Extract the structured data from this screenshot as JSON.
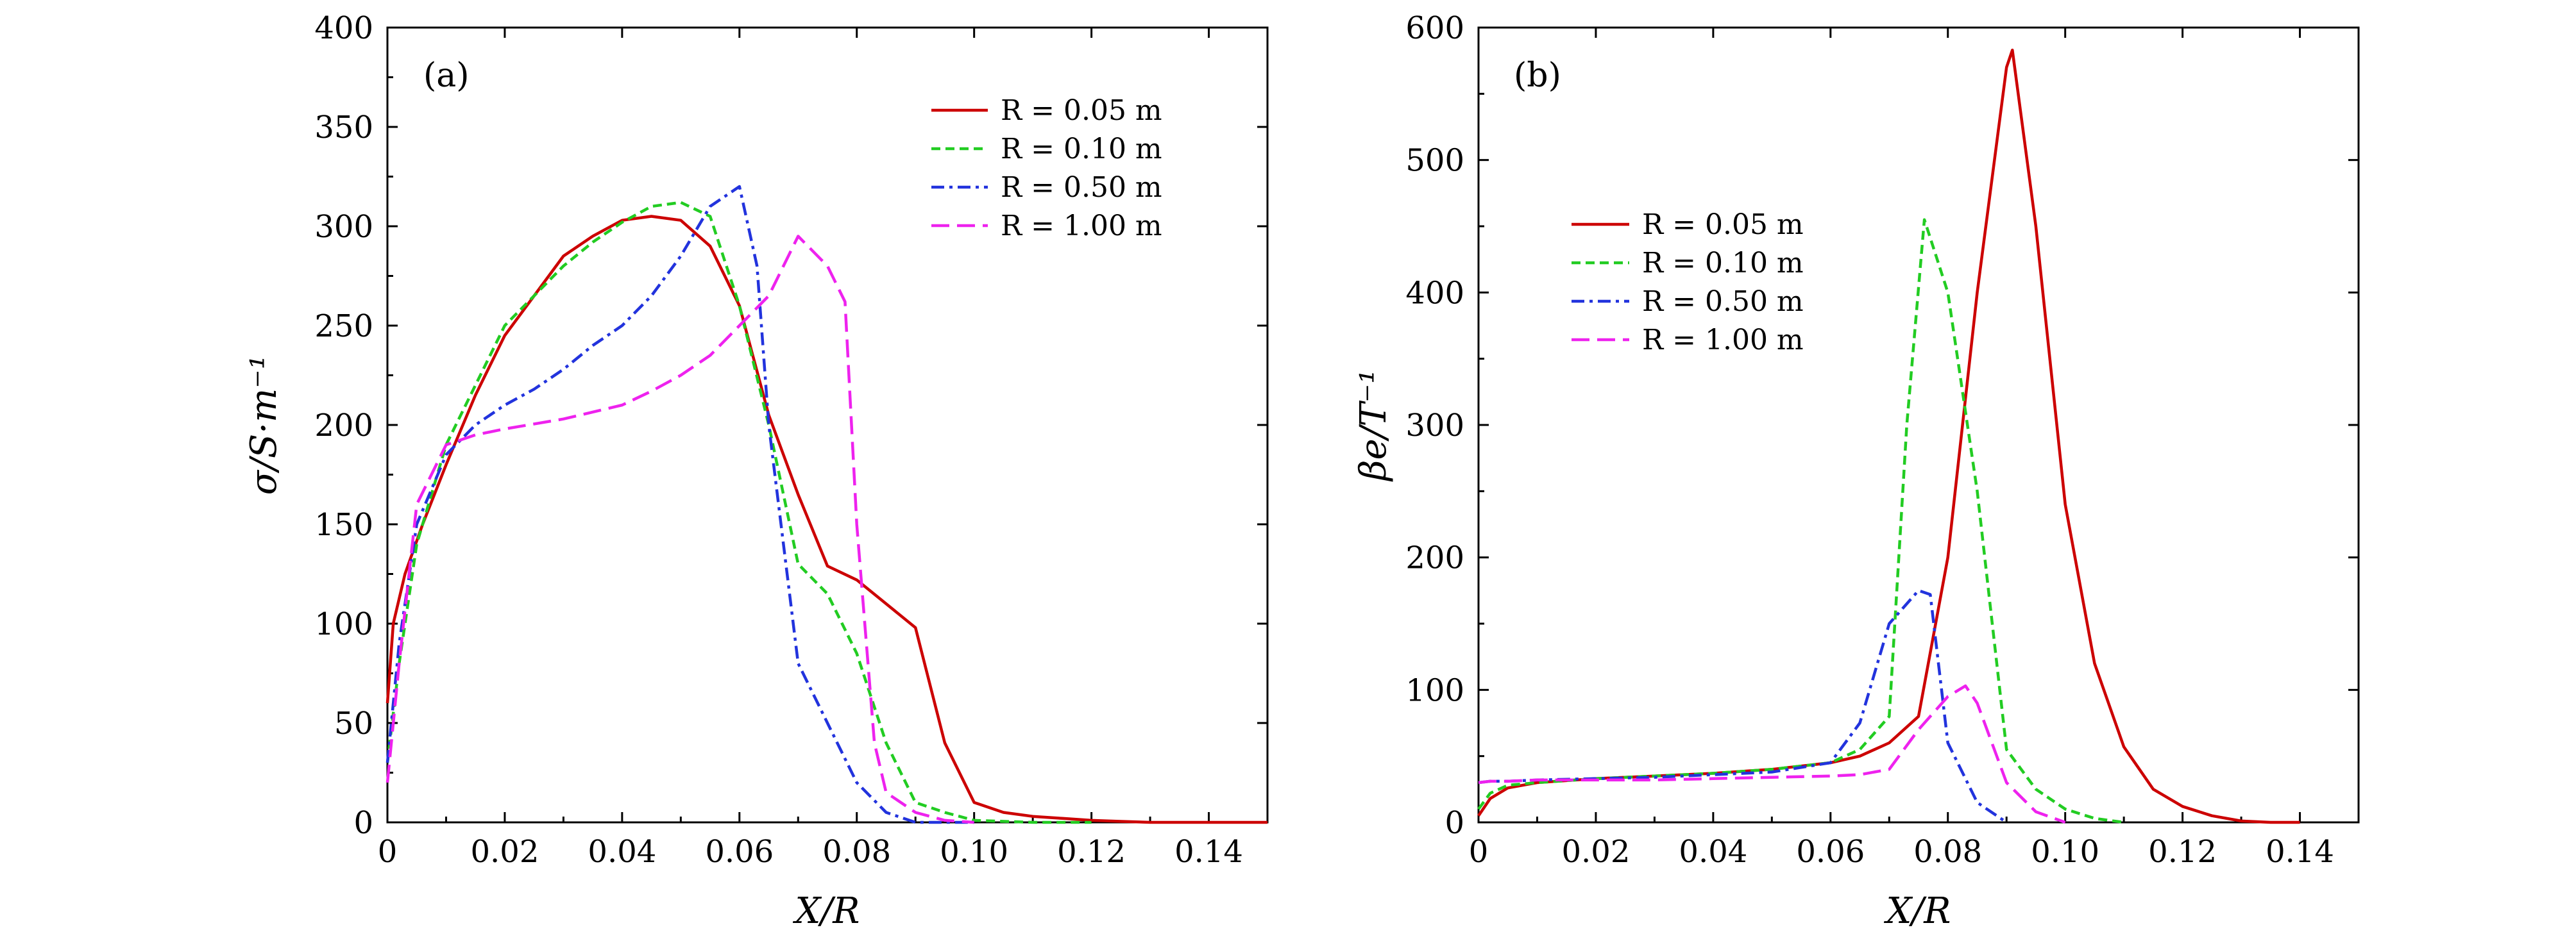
{
  "chart_data": [
    {
      "type": "line",
      "panel_label": "(a)",
      "xlabel": "X/R",
      "ylabel": "σ/S·m⁻¹",
      "xlim": [
        0,
        0.15
      ],
      "ylim": [
        0,
        400
      ],
      "xticks": [
        0,
        0.02,
        0.04,
        0.06,
        0.08,
        0.1,
        0.12,
        0.14
      ],
      "xtick_labels": [
        "0",
        "0.02",
        "0.04",
        "0.06",
        "0.08",
        "0.10",
        "0.12",
        "0.14"
      ],
      "yticks": [
        0,
        50,
        100,
        150,
        200,
        250,
        300,
        350,
        400
      ],
      "ytick_labels": [
        "0",
        "50",
        "100",
        "150",
        "200",
        "250",
        "300",
        "350",
        "400"
      ],
      "legend_position": "top-right",
      "series": [
        {
          "name": "R = 0.05 m",
          "color": "#cc0000",
          "dash": "solid",
          "x": [
            0,
            0.001,
            0.003,
            0.006,
            0.01,
            0.015,
            0.02,
            0.025,
            0.03,
            0.035,
            0.04,
            0.045,
            0.05,
            0.055,
            0.06,
            0.065,
            0.07,
            0.075,
            0.08,
            0.085,
            0.09,
            0.095,
            0.1,
            0.105,
            0.11,
            0.115,
            0.12,
            0.125,
            0.13,
            0.14,
            0.15
          ],
          "y": [
            60,
            100,
            125,
            150,
            180,
            215,
            245,
            265,
            285,
            295,
            303,
            305,
            303,
            290,
            260,
            205,
            165,
            129,
            122,
            110,
            98,
            40,
            10,
            5,
            3,
            2,
            1,
            0.5,
            0,
            0,
            0
          ]
        },
        {
          "name": "R = 0.10 m",
          "color": "#22cc22",
          "dash": "short",
          "x": [
            0,
            0.002,
            0.005,
            0.01,
            0.015,
            0.02,
            0.025,
            0.03,
            0.035,
            0.04,
            0.045,
            0.05,
            0.055,
            0.06,
            0.065,
            0.07,
            0.075,
            0.08,
            0.085,
            0.09,
            0.095,
            0.1,
            0.11,
            0.12
          ],
          "y": [
            30,
            80,
            140,
            190,
            220,
            250,
            265,
            280,
            292,
            302,
            310,
            312,
            305,
            260,
            200,
            130,
            115,
            85,
            40,
            10,
            5,
            1,
            0,
            0
          ]
        },
        {
          "name": "R = 0.50 m",
          "color": "#2233dd",
          "dash": "dashdot",
          "x": [
            0,
            0.002,
            0.005,
            0.01,
            0.015,
            0.02,
            0.025,
            0.03,
            0.035,
            0.04,
            0.045,
            0.05,
            0.055,
            0.06,
            0.063,
            0.065,
            0.07,
            0.075,
            0.08,
            0.085,
            0.09,
            0.1
          ],
          "y": [
            30,
            90,
            150,
            185,
            200,
            210,
            218,
            228,
            240,
            250,
            265,
            285,
            310,
            320,
            280,
            200,
            80,
            50,
            20,
            5,
            0,
            0
          ]
        },
        {
          "name": "R = 1.00 m",
          "color": "#ee22ee",
          "dash": "dashed",
          "x": [
            0,
            0.002,
            0.005,
            0.01,
            0.015,
            0.02,
            0.03,
            0.04,
            0.045,
            0.05,
            0.055,
            0.06,
            0.065,
            0.07,
            0.075,
            0.078,
            0.08,
            0.083,
            0.085,
            0.09,
            0.095,
            0.1
          ],
          "y": [
            20,
            80,
            160,
            190,
            195,
            198,
            203,
            210,
            217,
            225,
            235,
            250,
            265,
            295,
            280,
            262,
            150,
            40,
            15,
            5,
            1,
            0
          ]
        }
      ]
    },
    {
      "type": "line",
      "panel_label": "(b)",
      "xlabel": "X/R",
      "ylabel": "βe/T⁻¹",
      "xlim": [
        0,
        0.15
      ],
      "ylim": [
        0,
        600
      ],
      "xticks": [
        0,
        0.02,
        0.04,
        0.06,
        0.08,
        0.1,
        0.12,
        0.14
      ],
      "xtick_labels": [
        "0",
        "0.02",
        "0.04",
        "0.06",
        "0.08",
        "0.10",
        "0.12",
        "0.14"
      ],
      "yticks": [
        0,
        100,
        200,
        300,
        400,
        500,
        600
      ],
      "ytick_labels": [
        "0",
        "100",
        "200",
        "300",
        "400",
        "500",
        "600"
      ],
      "legend_position": "upper-left",
      "series": [
        {
          "name": "R = 0.05 m",
          "color": "#cc0000",
          "dash": "solid",
          "x": [
            0,
            0.002,
            0.005,
            0.01,
            0.02,
            0.03,
            0.04,
            0.05,
            0.06,
            0.065,
            0.07,
            0.075,
            0.08,
            0.085,
            0.09,
            0.091,
            0.095,
            0.1,
            0.105,
            0.11,
            0.115,
            0.12,
            0.125,
            0.13,
            0.135,
            0.14
          ],
          "y": [
            5,
            18,
            26,
            30,
            33,
            35,
            37,
            40,
            45,
            50,
            60,
            80,
            200,
            400,
            570,
            583,
            450,
            240,
            120,
            57,
            25,
            12,
            5,
            1,
            0,
            0
          ]
        },
        {
          "name": "R = 0.10 m",
          "color": "#22cc22",
          "dash": "short",
          "x": [
            0,
            0.002,
            0.005,
            0.01,
            0.02,
            0.03,
            0.04,
            0.05,
            0.06,
            0.065,
            0.07,
            0.073,
            0.076,
            0.08,
            0.085,
            0.09,
            0.095,
            0.1,
            0.105,
            0.11
          ],
          "y": [
            10,
            22,
            28,
            30,
            33,
            35,
            37,
            40,
            45,
            55,
            80,
            300,
            455,
            400,
            250,
            55,
            25,
            10,
            3,
            0
          ]
        },
        {
          "name": "R = 0.50 m",
          "color": "#2233dd",
          "dash": "dashdot",
          "x": [
            0,
            0.002,
            0.005,
            0.01,
            0.02,
            0.03,
            0.04,
            0.05,
            0.06,
            0.065,
            0.07,
            0.075,
            0.077,
            0.08,
            0.085,
            0.09
          ],
          "y": [
            30,
            31,
            31,
            32,
            33,
            34,
            36,
            38,
            45,
            75,
            150,
            175,
            172,
            60,
            15,
            0
          ]
        },
        {
          "name": "R = 1.00 m",
          "color": "#ee22ee",
          "dash": "dashed",
          "x": [
            0,
            0.002,
            0.005,
            0.01,
            0.02,
            0.03,
            0.04,
            0.05,
            0.06,
            0.065,
            0.07,
            0.075,
            0.08,
            0.083,
            0.085,
            0.09,
            0.095,
            0.1
          ],
          "y": [
            30,
            31,
            31,
            32,
            32,
            32,
            33,
            34,
            35,
            36,
            40,
            70,
            95,
            103,
            90,
            30,
            8,
            0
          ]
        }
      ]
    }
  ]
}
